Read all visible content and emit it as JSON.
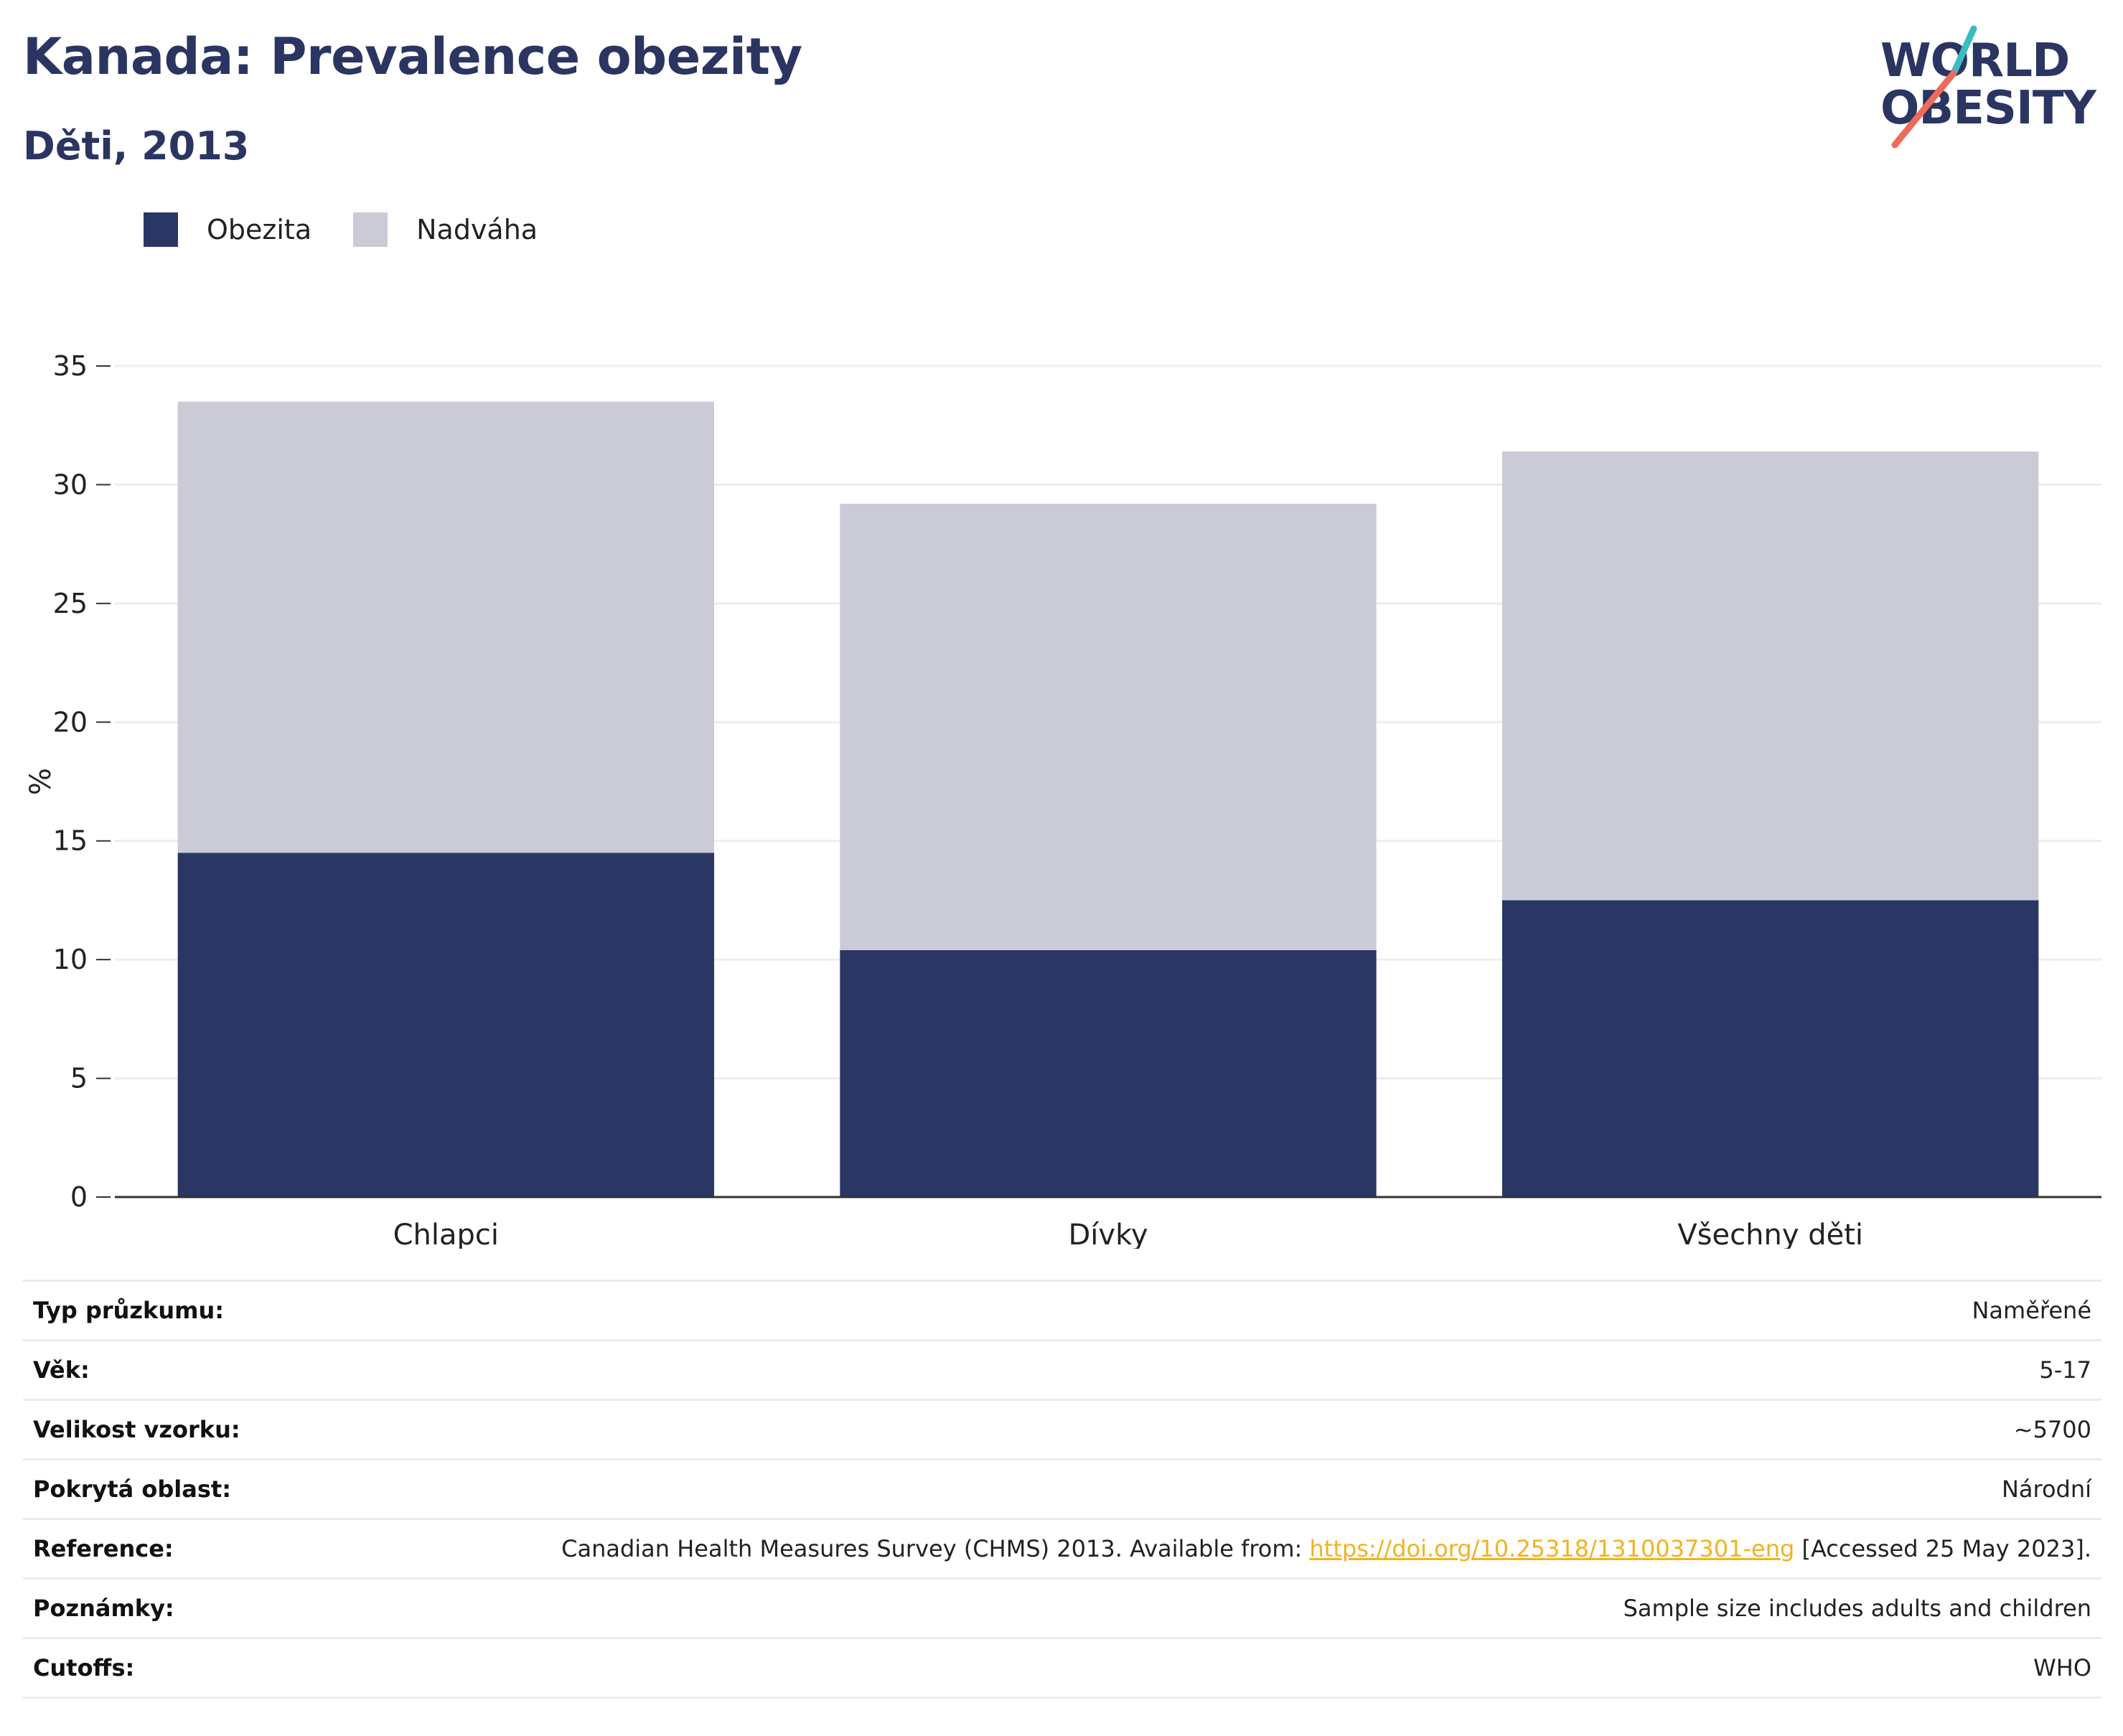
{
  "header": {
    "title": "Kanada: Prevalence obezity",
    "subtitle": "Děti, 2013"
  },
  "logo": {
    "line1": "WORLD",
    "line2": "OBESITY"
  },
  "colors": {
    "obesity": "#2a3764",
    "overweight": "#cacbd7",
    "accent_teal": "#3bbcc1",
    "accent_coral": "#ee6b5c",
    "link": "#f0b323"
  },
  "chart_data": {
    "type": "bar",
    "stacked": true,
    "categories": [
      "Chlapci",
      "Dívky",
      "Všechny děti"
    ],
    "series": [
      {
        "name": "Obezita",
        "values": [
          14.5,
          10.4,
          12.5
        ]
      },
      {
        "name": "Nadváha",
        "values": [
          19.0,
          18.8,
          18.9
        ]
      }
    ],
    "ylabel": "%",
    "ylim": [
      0,
      35
    ],
    "yticks": [
      0,
      5,
      10,
      15,
      20,
      25,
      30,
      35
    ],
    "grid": true,
    "legend_position": "top-left"
  },
  "info": [
    {
      "label": "Typ průzkumu:",
      "value": "Naměřené"
    },
    {
      "label": "Věk:",
      "value": "5-17"
    },
    {
      "label": "Velikost vzorku:",
      "value": "~5700"
    },
    {
      "label": "Pokrytá oblast:",
      "value": "Národní"
    },
    {
      "label": "Reference:",
      "value_before": "Canadian Health Measures Survey (CHMS) 2013. Available from: ",
      "link": "https://doi.org/10.25318/1310037301-eng",
      "value_after": " [Accessed 25 May 2023]."
    },
    {
      "label": "Poznámky:",
      "value": "Sample size includes adults and children"
    },
    {
      "label": "Cutoffs:",
      "value": "WHO"
    }
  ]
}
